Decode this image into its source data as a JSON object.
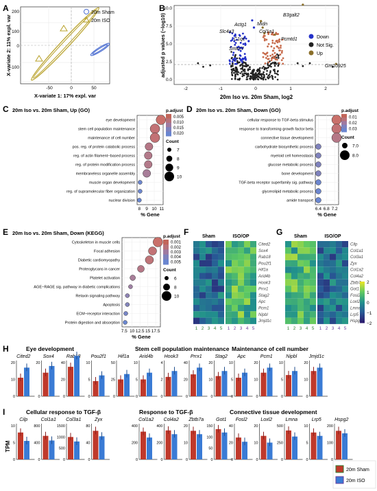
{
  "panel_letters": [
    "A",
    "B",
    "C",
    "D",
    "E",
    "F",
    "G",
    "H",
    "I"
  ],
  "colors": {
    "sham": "#d7261e",
    "iso": "#3c78c8",
    "pls_sham": "#4d6fd1",
    "pls_iso": "#b8a12a",
    "volcano_down": "#2431c9",
    "volcano_up": "#c76b4b",
    "volcano_ns": "#222222",
    "volcano_up_legend": "#8b6f2a",
    "bar_sham": "#c0392b",
    "bar_iso": "#3a7bd5"
  },
  "panelA": {
    "xlabel": "X-variate 1: 17% expl. var",
    "ylabel": "X-variate 2: 11% expl. var",
    "legend": [
      "20m Sham",
      "20m ISO"
    ],
    "chart_data": {
      "type": "scatter",
      "xlim": [
        -110,
        80
      ],
      "ylim": [
        -190,
        200
      ],
      "xticks": [
        -50,
        0,
        50
      ],
      "yticks": [
        -100,
        0,
        100,
        200
      ],
      "series": [
        {
          "name": "20m Sham",
          "points": [
            [
              60,
              10
            ],
            [
              65,
              5
            ],
            [
              58,
              0
            ],
            [
              55,
              -5
            ],
            [
              62,
              -2
            ]
          ]
        },
        {
          "name": "20m ISO",
          "points": [
            [
              -60,
              -60
            ],
            [
              -70,
              -75
            ],
            [
              -25,
              100
            ],
            [
              -30,
              95
            ],
            [
              -80,
              -85
            ]
          ]
        }
      ]
    }
  },
  "panelB": {
    "title": "20m Iso vs. 20m Sham, log2",
    "ylabel": "adjusted p values (−log10)",
    "xticks": [
      "-2",
      "-1",
      "0",
      "1",
      "2"
    ],
    "yticks": [
      "0.0",
      "2.5",
      "5.0",
      "7.5",
      "10.0"
    ],
    "genes": [
      "B3galt2",
      "Actg1",
      "Midn",
      "Slc4a3",
      "Col1a1",
      "Pcmtd1",
      "C1qc",
      "Smim7",
      "Gm10925"
    ],
    "legend": [
      "Down",
      "Not Sig.",
      "Up"
    ]
  },
  "panelC": {
    "title": "20m Iso vs. 20m Sham, Up (GO)",
    "terms": [
      "eye development",
      "stem cell population maintenance",
      "maintenance of cell number",
      "pos. reg. of protein catabolic process",
      "reg. of actin filament−based process",
      "reg. of protein modification process",
      "membraneless organelle assembly",
      "muscle organ development",
      "reg. of supramolecular fiber organization",
      "nuclear division"
    ],
    "gene_pct": [
      10.9,
      10.1,
      10.1,
      9.3,
      9.2,
      9.2,
      9.0,
      8.1,
      8.1,
      8.0
    ],
    "counts": [
      10,
      10,
      10,
      9,
      9,
      9,
      9,
      7,
      7,
      7
    ],
    "xticks": [
      "8",
      "9",
      "10",
      "11"
    ],
    "xlabel": "% Gene",
    "padj_label": "p.adjust",
    "padj_ticks": [
      "0.005",
      "0.010",
      "0.015",
      "0.020"
    ],
    "count_label": "Count",
    "count_ticks": [
      "7",
      "8",
      "9",
      "10"
    ]
  },
  "panelD": {
    "title": "20m Iso vs. 20m Sham, Down (GO)",
    "terms": [
      "cellular response to TGF-beta stimulus",
      "response to transforming growth factor beta",
      "connective tissue development",
      "carbohydrate biosynthetic process",
      "myeloid cell homeostasis",
      "glucose metabolic process",
      "bone development",
      "TGF-beta receptor superfamily sig. pathway",
      "glycerolipid metabolic process",
      "amide transport"
    ],
    "gene_pct": [
      7.3,
      7.3,
      7.3,
      6.4,
      6.4,
      6.4,
      6.4,
      6.4,
      6.4,
      6.4
    ],
    "counts": [
      8,
      8,
      8,
      7,
      7,
      7,
      7,
      7,
      7,
      7
    ],
    "xticks": [
      "6.4",
      "6.8",
      "7.2"
    ],
    "xlabel": "% Gene",
    "padj_label": "p.adjust",
    "padj_ticks": [
      "0.01",
      "0.02",
      "0.03"
    ],
    "count_label": "Count",
    "count_ticks": [
      "7.0",
      "8.0"
    ]
  },
  "panelE": {
    "title": "20m Iso vs. 20m Sham, Down (KEGG)",
    "terms": [
      "Cytoskeleton in muscle cells",
      "Focal adhesion",
      "Diabetic cardiomyopathy",
      "Proteoglycans in cancer",
      "Platelet activation",
      "AGE−RAGE sig. pathway in diabetic complications",
      "Relaxin signaling pathway",
      "Apoptosis",
      "ECM−receptor interaction",
      "Protein digestion and absorption"
    ],
    "gene_pct": [
      18.2,
      16.5,
      15.5,
      12.8,
      10.2,
      9.5,
      8.5,
      8.5,
      8.0,
      7.8
    ],
    "counts": [
      10,
      9,
      9,
      8,
      7,
      6,
      6,
      6,
      6,
      6
    ],
    "xticks": [
      "7.5",
      "10",
      "12.5",
      "15",
      "17.5"
    ],
    "xlabel": "% Gene",
    "padj_label": "p.adjust",
    "padj_ticks": [
      "0.001",
      "0.002",
      "0.003",
      "0.004",
      "0.005"
    ],
    "count_label": "Count",
    "count_ticks": [
      "6",
      "8",
      "10"
    ]
  },
  "panelF": {
    "groups": [
      "Sham",
      "ISO/OP"
    ],
    "genes": [
      "Cited2",
      "Sox4",
      "Rab18",
      "Pou2f1",
      "Hif1a",
      "Arid4b",
      "Hook3",
      "Prrx1",
      "Stag2",
      "Apc",
      "Pcm1",
      "Nipbl",
      "Jmjd1c"
    ],
    "samples": [
      "1",
      "2",
      "3",
      "4",
      "5",
      "1",
      "2",
      "3",
      "4",
      "5"
    ]
  },
  "panelG": {
    "groups": [
      "Sham",
      "ISO/OP"
    ],
    "genes": [
      "Cilp",
      "Col1a1",
      "Col3a1",
      "Zyx",
      "Col1a2",
      "Col4a2",
      "Zbtb7a",
      "Got1",
      "Fosl2",
      "Loxl2",
      "Lmna",
      "Lrp5",
      "Hspg2"
    ],
    "samples": [
      "1",
      "2",
      "3",
      "4",
      "5",
      "1",
      "2",
      "3",
      "4",
      "5"
    ]
  },
  "colorbar": {
    "ticks": [
      "2",
      "1",
      "0",
      "−1",
      "−2"
    ]
  },
  "panelH": {
    "groups": [
      {
        "title": "Eye development",
        "genes": [
          "Cited2",
          "Sox4",
          "Rab18",
          "Pou2f1",
          "Hif1a"
        ],
        "yticks": [
          [
            "20",
            "10",
            "0"
          ],
          [
            "20",
            "0"
          ],
          [
            "40",
            "20",
            "0"
          ],
          [
            "10",
            "5",
            "0"
          ],
          [
            "50",
            "25",
            "0"
          ]
        ],
        "vals": [
          [
            11,
            17
          ],
          [
            14,
            18
          ],
          [
            35,
            48
          ],
          [
            4.5,
            6.2
          ],
          [
            25,
            33
          ]
        ]
      },
      {
        "title": "Stem cell population maintenance",
        "genes": [
          "Arid4b",
          "Hook3",
          "Prrx1",
          "Stag2"
        ],
        "yticks": [
          [
            "10",
            "5",
            "0"
          ],
          [
            "4",
            "2",
            "0"
          ],
          [
            "40",
            "20",
            "0"
          ],
          [
            "20",
            "10",
            "0"
          ]
        ],
        "vals": [
          [
            5,
            7
          ],
          [
            2.3,
            3
          ],
          [
            26,
            34
          ],
          [
            12,
            15
          ]
        ]
      },
      {
        "title": "Maintenance of cell number",
        "genes": [
          "Apc",
          "Pcm1",
          "Nipbl",
          "Jmjd1c"
        ],
        "yticks": [
          [
            "10",
            "5",
            "0"
          ],
          [
            "20",
            "10",
            "0"
          ],
          [
            "10",
            "5",
            "0"
          ],
          [
            "20",
            "10",
            "0"
          ]
        ],
        "vals": [
          [
            5.5,
            7
          ],
          [
            14,
            17
          ],
          [
            6.3,
            7.5
          ],
          [
            15,
            17
          ]
        ]
      }
    ]
  },
  "panelI": {
    "ylabel": "TPM",
    "groups": [
      {
        "title": "Cellular response to TGF-β",
        "genes": [
          "Cilp",
          "Col1a1",
          "Col3a1",
          "Zyx"
        ],
        "yticks": [
          [
            "10",
            "5",
            "0"
          ],
          [
            "800",
            "400",
            "0"
          ],
          [
            "1500",
            "1000",
            "500",
            "0"
          ],
          [
            "80",
            "40",
            "0"
          ]
        ],
        "vals": [
          [
            8,
            5.5
          ],
          [
            560,
            450
          ],
          [
            1000,
            800
          ],
          [
            68,
            55
          ]
        ]
      },
      {
        "title": "Response to TGF-β",
        "genes": [
          "Col1a2",
          "Col4a2",
          "Zbtb7a",
          "Got1"
        ],
        "yticks": [
          [
            "400",
            "200",
            "0"
          ],
          [
            "400",
            "200",
            "0"
          ],
          [
            "20",
            "10",
            "0"
          ],
          [
            "150",
            "100",
            "50",
            "0"
          ]
        ],
        "vals": [
          [
            330,
            260
          ],
          [
            345,
            300
          ],
          [
            17,
            15
          ],
          [
            135,
            120
          ]
        ]
      },
      {
        "title": "Connective tissue development",
        "genes": [
          "Fosl2",
          "Loxl2",
          "Lmna",
          "Lrp5",
          "Hspg2"
        ],
        "yticks": [
          [
            "40",
            "20",
            "0"
          ],
          [
            "20",
            "10",
            "0"
          ],
          [
            "500",
            "250",
            "0"
          ],
          [
            "10",
            "5",
            "0"
          ],
          [
            "200",
            "100",
            "0"
          ]
        ],
        "vals": [
          [
            26,
            21
          ],
          [
            14,
            10
          ],
          [
            430,
            340
          ],
          [
            8,
            7
          ],
          [
            170,
            155
          ]
        ]
      }
    ],
    "legend": [
      "20m Sham",
      "20m ISO"
    ]
  }
}
